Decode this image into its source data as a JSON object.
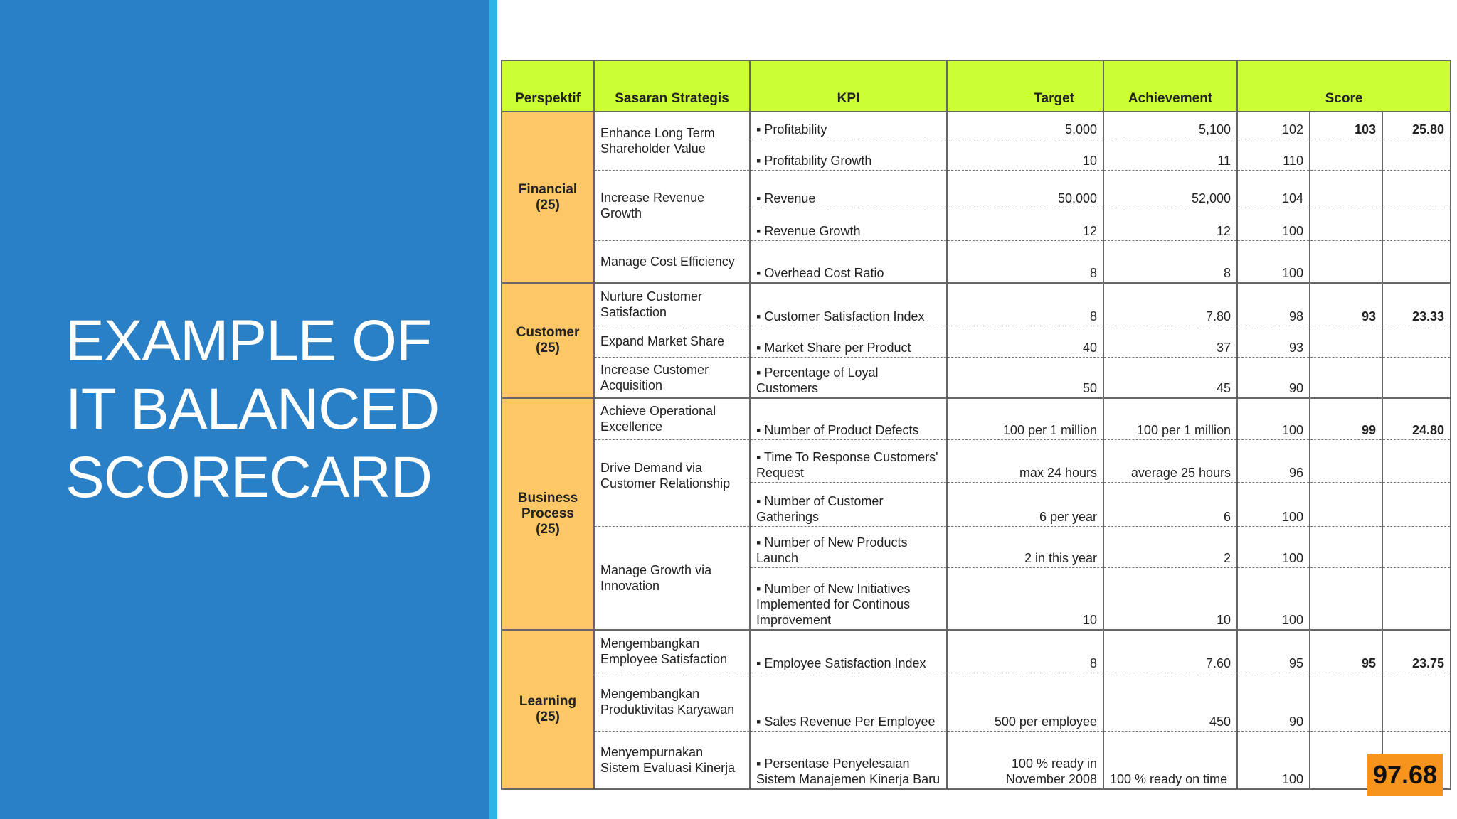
{
  "title_lines": [
    "EXAMPLE OF",
    "IT BALANCED",
    "SCORECARD"
  ],
  "table": {
    "headers": {
      "perspektif": "Perspektif",
      "sasaran": "Sasaran Strategis",
      "kpi": "KPI",
      "target": "Target",
      "achievement": "Achievement",
      "score": "Score"
    },
    "perspectives": [
      {
        "name": "Financial",
        "weight": "(25)"
      },
      {
        "name": "Customer",
        "weight": "(25)"
      },
      {
        "name": "Business Process",
        "weight": "(25)"
      },
      {
        "name": "Learning",
        "weight": "(25)"
      }
    ],
    "strategies": [
      "Enhance Long Term Shareholder Value",
      "Increase Revenue Growth",
      "Manage Cost Efficiency",
      "Nurture Customer Satisfaction",
      "Expand Market Share",
      "Increase Customer Acquisition",
      "Achieve Operational Excellence",
      "Drive Demand via Customer Relationship",
      "Manage Growth via Innovation",
      "Mengembangkan Employee Satisfaction",
      "Mengembangkan Produktivitas Karyawan",
      "Menyempurnakan Sistem Evaluasi Kinerja"
    ],
    "rows": [
      {
        "kpi": "▪ Profitability",
        "target": "5,000",
        "achievement": "5,100",
        "score": "102"
      },
      {
        "kpi": "▪ Profitability Growth",
        "target": "10",
        "achievement": "11",
        "score": "110"
      },
      {
        "kpi": "▪ Revenue",
        "target": "50,000",
        "achievement": "52,000",
        "score": "104"
      },
      {
        "kpi": "▪ Revenue Growth",
        "target": "12",
        "achievement": "12",
        "score": "100"
      },
      {
        "kpi": "▪ Overhead Cost Ratio",
        "target": "8",
        "achievement": "8",
        "score": "100"
      },
      {
        "kpi": "▪ Customer Satisfaction Index",
        "target": "8",
        "achievement": "7.80",
        "score": "98"
      },
      {
        "kpi": "▪ Market Share per Product",
        "target": "40",
        "achievement": "37",
        "score": "93"
      },
      {
        "kpi": "▪ Percentage of Loyal Customers",
        "target": "50",
        "achievement": "45",
        "score": "90"
      },
      {
        "kpi": "▪ Number of Product Defects",
        "target": "100 per 1 million",
        "achievement": "100 per 1 million",
        "score": "100"
      },
      {
        "kpi": "▪ Time To Response Customers' Request",
        "target": "max 24 hours",
        "achievement": "average 25 hours",
        "score": "96"
      },
      {
        "kpi": "▪ Number of Customer Gatherings",
        "target": "6 per year",
        "achievement": "6",
        "score": "100"
      },
      {
        "kpi": "▪ Number of New Products Launch",
        "target": "2 in this year",
        "achievement": "2",
        "score": "100"
      },
      {
        "kpi": "▪ Number of New Initiatives Implemented for Continous Improvement",
        "target": "10",
        "achievement": "10",
        "score": "100"
      },
      {
        "kpi": "▪ Employee Satisfaction Index",
        "target": "8",
        "achievement": "7.60",
        "score": "95"
      },
      {
        "kpi": "▪ Sales Revenue Per Employee",
        "target": "500 per employee",
        "achievement": "450",
        "score": "90"
      },
      {
        "kpi": "▪ Persentase Penyelesaian Sistem Manajemen Kinerja Baru",
        "target": "100 % ready in November 2008",
        "achievement": "100 % ready on time",
        "score": "100"
      }
    ],
    "perspective_scores": [
      {
        "avg": "103",
        "weighted": "25.80"
      },
      {
        "avg": "93",
        "weighted": "23.33"
      },
      {
        "avg": "99",
        "weighted": "24.80"
      },
      {
        "avg": "95",
        "weighted": "23.75"
      }
    ],
    "final_score": "97.68"
  },
  "colors": {
    "left_panel": "#2a80c6",
    "accent_bar": "#2eb3e8",
    "header_fill": "#ccff33",
    "perspective_fill": "#fdc766",
    "final_score_fill": "#f7941d"
  }
}
